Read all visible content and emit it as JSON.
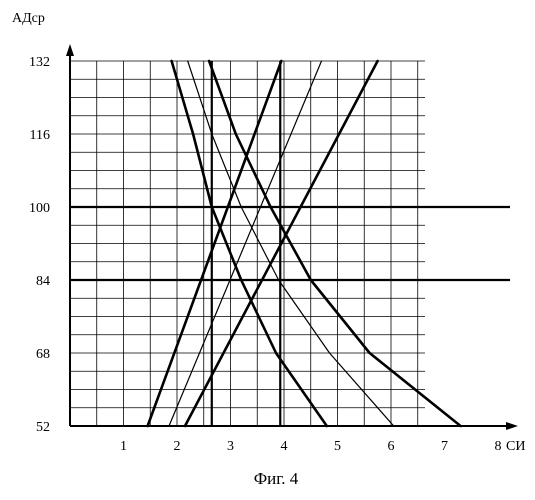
{
  "chart_data": {
    "type": "line",
    "title": "",
    "ylabel": "АДср",
    "xlabel": "СИ",
    "caption": "Фиг. 4",
    "xlim": [
      0,
      8
    ],
    "ylim": [
      52,
      132
    ],
    "x_ticks": [
      "1",
      "2",
      "3",
      "4",
      "5",
      "6",
      "7",
      "8"
    ],
    "y_ticks": [
      "52",
      "68",
      "84",
      "100",
      "116",
      "132"
    ],
    "y_tick_values": [
      52,
      68,
      84,
      100,
      116,
      132
    ],
    "grid": true,
    "grid_y_step": 4,
    "grid_x_step": 0.5,
    "reference_lines": {
      "horizontal": [
        100,
        84
      ],
      "vertical": [
        2.65,
        3.93
      ]
    },
    "series": [
      {
        "points": [
          [
            1.45,
            52
          ],
          [
            3.95,
            132
          ]
        ],
        "weight": "thick"
      },
      {
        "points": [
          [
            1.85,
            52
          ],
          [
            4.7,
            132
          ]
        ],
        "weight": "thin"
      },
      {
        "points": [
          [
            2.15,
            52
          ],
          [
            5.75,
            132
          ]
        ],
        "weight": "thick"
      },
      {
        "points": [
          [
            1.9,
            132
          ],
          [
            2.3,
            116
          ],
          [
            2.65,
            100
          ],
          [
            3.2,
            84
          ],
          [
            3.85,
            68
          ],
          [
            4.8,
            52
          ]
        ],
        "weight": "thick"
      },
      {
        "points": [
          [
            2.2,
            132
          ],
          [
            2.65,
            116
          ],
          [
            3.2,
            100
          ],
          [
            3.9,
            84
          ],
          [
            4.85,
            68
          ],
          [
            6.05,
            52
          ]
        ],
        "weight": "thin"
      },
      {
        "points": [
          [
            2.6,
            132
          ],
          [
            3.1,
            116
          ],
          [
            3.75,
            100
          ],
          [
            4.5,
            84
          ],
          [
            5.6,
            68
          ],
          [
            7.3,
            52
          ]
        ],
        "weight": "thick"
      }
    ]
  }
}
